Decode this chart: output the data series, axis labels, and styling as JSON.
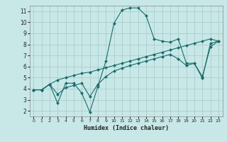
{
  "xlabel": "Humidex (Indice chaleur)",
  "background_color": "#c8e8e8",
  "grid_color": "#a8c8c8",
  "line_color": "#1a6b6b",
  "xlim": [
    -0.5,
    23.5
  ],
  "ylim": [
    1.5,
    11.5
  ],
  "xticks": [
    0,
    1,
    2,
    3,
    4,
    5,
    6,
    7,
    8,
    9,
    10,
    11,
    12,
    13,
    14,
    15,
    16,
    17,
    18,
    19,
    20,
    21,
    22,
    23
  ],
  "yticks": [
    2,
    3,
    4,
    5,
    6,
    7,
    8,
    9,
    10,
    11
  ],
  "line1_x": [
    0,
    1,
    2,
    3,
    4,
    5,
    6,
    7,
    8,
    9,
    10,
    11,
    12,
    13,
    14,
    15,
    16,
    17,
    18,
    19,
    20,
    21,
    22,
    23
  ],
  "line1_y": [
    3.9,
    3.9,
    4.4,
    2.7,
    4.5,
    4.5,
    3.6,
    1.9,
    4.2,
    6.5,
    9.9,
    11.1,
    11.3,
    11.3,
    10.6,
    8.5,
    8.3,
    8.2,
    8.5,
    6.3,
    6.3,
    4.95,
    8.1,
    8.3
  ],
  "line2_x": [
    0,
    1,
    2,
    3,
    4,
    5,
    6,
    7,
    8,
    9,
    10,
    11,
    12,
    13,
    14,
    15,
    16,
    17,
    18,
    19,
    20,
    21,
    22,
    23
  ],
  "line2_y": [
    3.9,
    3.9,
    4.4,
    4.8,
    5.0,
    5.2,
    5.4,
    5.5,
    5.7,
    5.9,
    6.1,
    6.3,
    6.5,
    6.7,
    6.9,
    7.1,
    7.3,
    7.5,
    7.7,
    7.9,
    8.1,
    8.3,
    8.5,
    8.3
  ],
  "line3_x": [
    0,
    1,
    2,
    3,
    4,
    5,
    6,
    7,
    8,
    9,
    10,
    11,
    12,
    13,
    14,
    15,
    16,
    17,
    18,
    19,
    20,
    21,
    22,
    23
  ],
  "line3_y": [
    3.9,
    3.9,
    4.4,
    3.5,
    4.1,
    4.3,
    4.5,
    3.3,
    4.4,
    5.1,
    5.6,
    5.85,
    6.1,
    6.3,
    6.5,
    6.7,
    6.9,
    7.1,
    6.7,
    6.1,
    6.3,
    5.1,
    7.8,
    8.3
  ]
}
